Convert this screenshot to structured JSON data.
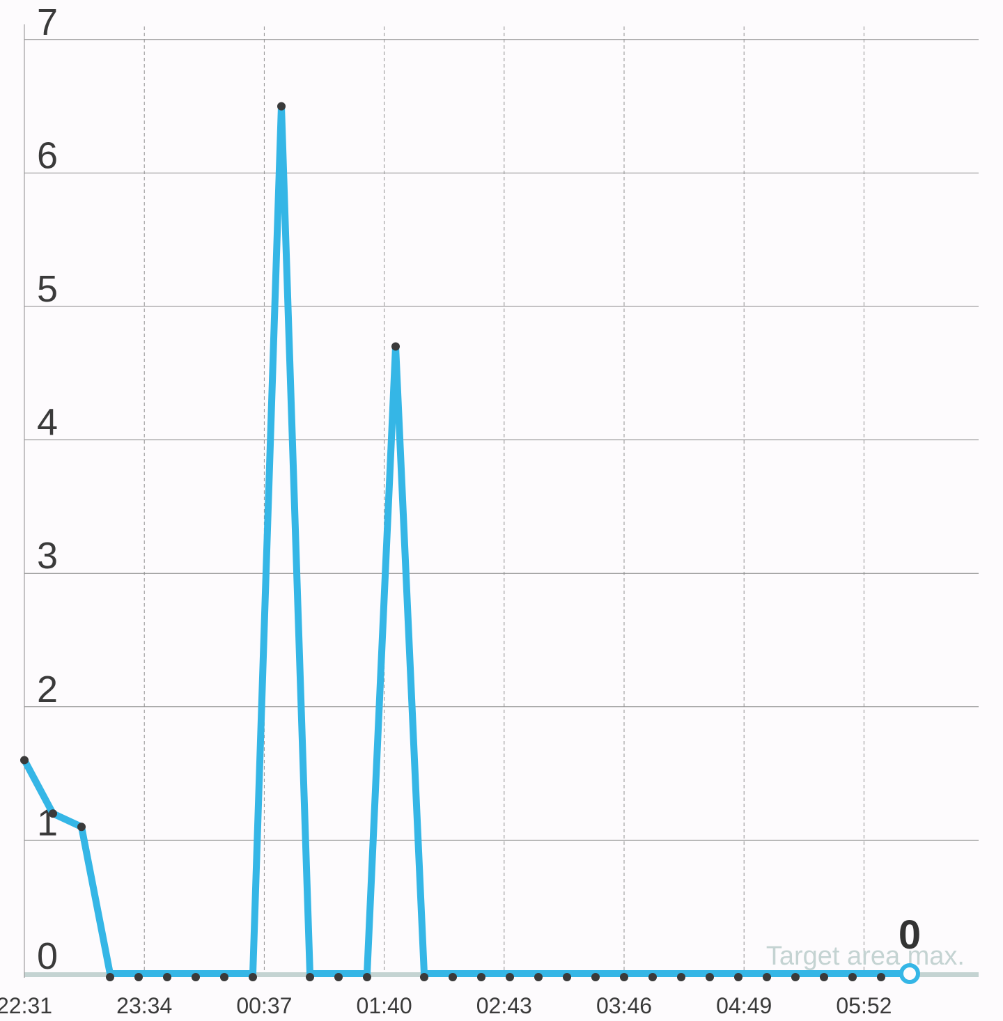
{
  "chart_data": {
    "type": "line",
    "x_ticks": [
      "22:31",
      "23:34",
      "00:37",
      "01:40",
      "02:43",
      "03:46",
      "04:49",
      "05:52"
    ],
    "y_ticks": [
      "0",
      "1",
      "2",
      "3",
      "4",
      "5",
      "6",
      "7"
    ],
    "ylim": [
      0,
      7
    ],
    "grid": true,
    "series": [
      {
        "color": "#35b6e6",
        "points": [
          {
            "t": "22:31",
            "y": 1.6
          },
          {
            "t": "22:46",
            "y": 1.2
          },
          {
            "t": "23:01",
            "y": 1.1
          },
          {
            "t": "23:16",
            "y": 0
          },
          {
            "t": "23:31",
            "y": 0
          },
          {
            "t": "23:46",
            "y": 0
          },
          {
            "t": "00:01",
            "y": 0
          },
          {
            "t": "00:16",
            "y": 0
          },
          {
            "t": "00:31",
            "y": 0
          },
          {
            "t": "00:46",
            "y": 6.5
          },
          {
            "t": "01:01",
            "y": 0
          },
          {
            "t": "01:16",
            "y": 0
          },
          {
            "t": "01:31",
            "y": 0
          },
          {
            "t": "01:46",
            "y": 4.7
          },
          {
            "t": "02:01",
            "y": 0
          },
          {
            "t": "02:16",
            "y": 0
          },
          {
            "t": "02:31",
            "y": 0
          },
          {
            "t": "02:46",
            "y": 0
          },
          {
            "t": "03:01",
            "y": 0
          },
          {
            "t": "03:16",
            "y": 0
          },
          {
            "t": "03:31",
            "y": 0
          },
          {
            "t": "03:46",
            "y": 0
          },
          {
            "t": "04:01",
            "y": 0
          },
          {
            "t": "04:16",
            "y": 0
          },
          {
            "t": "04:31",
            "y": 0
          },
          {
            "t": "04:46",
            "y": 0
          },
          {
            "t": "05:01",
            "y": 0
          },
          {
            "t": "05:16",
            "y": 0
          },
          {
            "t": "05:31",
            "y": 0
          },
          {
            "t": "05:46",
            "y": 0
          },
          {
            "t": "06:01",
            "y": 0
          },
          {
            "t": "06:16",
            "y": 0
          }
        ]
      }
    ],
    "last_value_label": "0",
    "target_area": {
      "label": "Target area max.",
      "max": 0,
      "color": "#c4d3d2"
    }
  }
}
